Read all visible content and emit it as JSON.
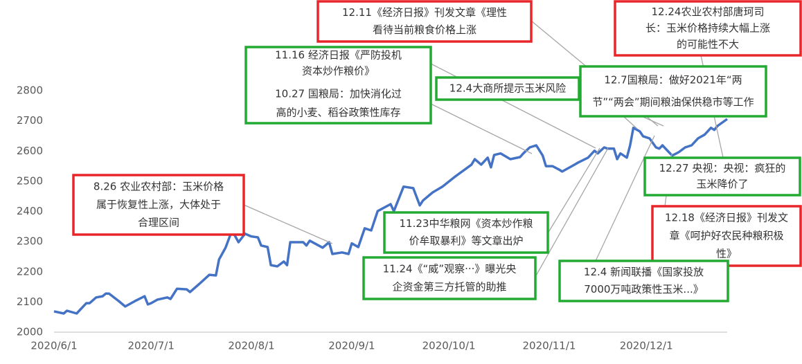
{
  "chart_data": {
    "type": "line",
    "color": "#4472c4",
    "x": [
      "2020/6/1",
      "2020/6/4",
      "2020/6/5",
      "2020/6/8",
      "2020/6/10",
      "2020/6/11",
      "2020/6/12",
      "2020/6/14",
      "2020/6/16",
      "2020/6/17",
      "2020/6/18",
      "2020/6/21",
      "2020/6/23",
      "2020/6/26",
      "2020/6/29",
      "2020/6/30",
      "2020/7/1",
      "2020/7/3",
      "2020/7/6",
      "2020/7/7",
      "2020/7/9",
      "2020/7/12",
      "2020/7/13",
      "2020/7/16",
      "2020/7/19",
      "2020/7/21",
      "2020/7/22",
      "2020/7/24",
      "2020/7/26",
      "2020/7/28",
      "2020/7/30",
      "2020/8/1",
      "2020/8/3",
      "2020/8/4",
      "2020/8/6",
      "2020/8/7",
      "2020/8/9",
      "2020/8/11",
      "2020/8/12",
      "2020/8/13",
      "2020/8/17",
      "2020/8/18",
      "2020/8/19",
      "2020/8/23",
      "2020/8/25",
      "2020/8/26",
      "2020/8/29",
      "2020/8/31",
      "2020/9/1",
      "2020/9/3",
      "2020/9/5",
      "2020/9/7",
      "2020/9/9",
      "2020/9/13",
      "2020/9/14",
      "2020/9/17",
      "2020/9/20",
      "2020/9/22",
      "2020/9/23",
      "2020/9/25",
      "2020/9/26",
      "2020/9/29",
      "2020/10/3",
      "2020/10/8",
      "2020/10/9",
      "2020/10/11",
      "2020/10/13",
      "2020/10/14",
      "2020/10/15",
      "2020/10/17",
      "2020/10/20",
      "2020/10/23",
      "2020/10/24",
      "2020/10/26",
      "2020/10/28",
      "2020/10/30",
      "2020/10/31",
      "2020/11/2",
      "2020/11/4",
      "2020/11/5",
      "2020/11/8",
      "2020/11/10",
      "2020/11/13",
      "2020/11/15",
      "2020/11/16",
      "2020/11/18",
      "2020/11/19",
      "2020/11/21",
      "2020/11/22",
      "2020/11/23",
      "2020/11/25",
      "2020/11/26",
      "2020/11/27",
      "2020/11/29",
      "2020/11/30",
      "2020/12/2",
      "2020/12/4",
      "2020/12/5",
      "2020/12/6",
      "2020/12/8",
      "2020/12/9",
      "2020/12/11",
      "2020/12/13",
      "2020/12/15",
      "2020/12/17",
      "2020/12/19",
      "2020/12/21",
      "2020/12/22",
      "2020/12/23",
      "2020/12/26"
    ],
    "values": [
      2069,
      2062,
      2071,
      2062,
      2085,
      2096,
      2096,
      2115,
      2119,
      2128,
      2128,
      2103,
      2085,
      2103,
      2119,
      2092,
      2096,
      2108,
      2115,
      2110,
      2144,
      2142,
      2133,
      2161,
      2190,
      2188,
      2241,
      2280,
      2337,
      2298,
      2326,
      2317,
      2314,
      2287,
      2282,
      2222,
      2218,
      2234,
      2222,
      2298,
      2298,
      2287,
      2303,
      2280,
      2298,
      2259,
      2264,
      2259,
      2294,
      2282,
      2344,
      2337,
      2401,
      2424,
      2401,
      2482,
      2477,
      2420,
      2436,
      2454,
      2463,
      2482,
      2516,
      2555,
      2573,
      2555,
      2578,
      2546,
      2587,
      2592,
      2573,
      2580,
      2592,
      2612,
      2619,
      2585,
      2550,
      2550,
      2539,
      2532,
      2550,
      2562,
      2578,
      2601,
      2592,
      2612,
      2608,
      2608,
      2573,
      2592,
      2578,
      2619,
      2677,
      2665,
      2649,
      2642,
      2612,
      2608,
      2619,
      2596,
      2585,
      2596,
      2612,
      2619,
      2642,
      2654,
      2677,
      2670,
      2683,
      2706
    ],
    "xlim": [
      "2020/6/1",
      "2020/12/26"
    ],
    "xticks": [
      "2020/6/1",
      "2020/7/1",
      "2020/8/1",
      "2020/9/1",
      "2020/10/1",
      "2020/11/1",
      "2020/12/1"
    ],
    "ylim": [
      2000,
      2800
    ],
    "yticks": [
      2000,
      2100,
      2200,
      2300,
      2400,
      2500,
      2600,
      2700,
      2800
    ],
    "annotations": [
      {
        "lines": [
          "12.11《经济日报》刊发文章《理性",
          "看待当前粮食价格上涨"
        ],
        "color": "#e8262a"
      },
      {
        "lines": [
          "12.24农业农村部唐珂司",
          "长：玉米价格持续大幅上涨",
          "的可能性不大"
        ],
        "color": "#e8262a"
      },
      {
        "lines": [
          "11.16 经济日报《严防投机",
          "资本炒作粮价》",
          "10.27 国粮局：加快消化过",
          "高的小麦、稻谷政策性库存"
        ],
        "color": "#22aa33"
      },
      {
        "lines": [
          "12.4大商所提示玉米风险"
        ],
        "color": "#22aa33"
      },
      {
        "lines": [
          "12.7国粮局：做好2021年“两",
          "节”“两会”期间粮油保供稳市等工作"
        ],
        "color": "#22aa33"
      },
      {
        "lines": [
          "12.27 央视：央视：疯狂的",
          "玉米降价了"
        ],
        "color": "#22aa33"
      },
      {
        "lines": [
          "8.26 农业农村部：玉米价格",
          "属于恢复性上涨，大体处于",
          "合理区间"
        ],
        "color": "#e8262a"
      },
      {
        "lines": [
          "11.23中华粮网《资本炒作粮",
          "价牟取暴利》等文章出炉"
        ],
        "color": "#22aa33"
      },
      {
        "lines": [
          "11.24《“威”观察···》曝光央",
          "企资金第三方托管的助推"
        ],
        "color": "#22aa33"
      },
      {
        "lines": [
          "12.18《经济日报》刊发文",
          "章《呵护好农民种粮积极",
          "性》"
        ],
        "color": "#e8262a"
      },
      {
        "lines": [
          "12.4 新闻联播《国家投放",
          "7000万吨政策性玉米...》"
        ],
        "color": "#22aa33"
      }
    ]
  }
}
